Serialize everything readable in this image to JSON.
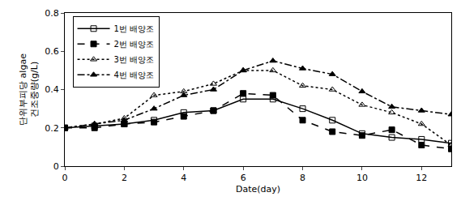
{
  "chart_data": {
    "type": "line",
    "x_label": "Date(day)",
    "y_label": "단위부피당 algae 건조중량(g/L)",
    "x": [
      0,
      1,
      2,
      3,
      4,
      5,
      6,
      7,
      8,
      9,
      10,
      11,
      12,
      13
    ],
    "series": [
      {
        "name": "1번 배양조",
        "color": "#000000",
        "marker": "square-open",
        "line_style": "solid",
        "values": [
          0.2,
          0.21,
          0.22,
          0.24,
          0.28,
          0.29,
          0.35,
          0.35,
          0.3,
          0.24,
          0.17,
          0.15,
          0.14,
          0.12
        ]
      },
      {
        "name": "2번 배양조",
        "color": "#000000",
        "marker": "square",
        "line_style": "dash",
        "values": [
          0.2,
          0.2,
          0.22,
          0.23,
          0.26,
          0.29,
          0.38,
          0.37,
          0.24,
          0.18,
          0.16,
          0.19,
          0.11,
          0.09
        ]
      },
      {
        "name": "3번 배양조",
        "color": "#000000",
        "marker": "triangle-up-open",
        "line_style": "dot",
        "values": [
          0.2,
          0.22,
          0.25,
          0.37,
          0.39,
          0.43,
          0.5,
          0.5,
          0.42,
          0.4,
          0.32,
          0.28,
          0.22,
          0.11
        ]
      },
      {
        "name": "4번 배양조",
        "color": "#000000",
        "marker": "triangle-up",
        "line_style": "dashdot",
        "values": [
          0.2,
          0.22,
          0.24,
          0.3,
          0.37,
          0.4,
          0.5,
          0.55,
          0.51,
          0.48,
          0.39,
          0.31,
          0.29,
          0.27
        ]
      }
    ],
    "xlim": [
      0,
      13
    ],
    "xticks": [
      0,
      2,
      4,
      6,
      8,
      10,
      12
    ],
    "ylim": [
      0,
      0.8
    ],
    "yticks": [
      0,
      0.2,
      0.4,
      0.6,
      0.8
    ],
    "grid": false,
    "legend": "upper left"
  }
}
